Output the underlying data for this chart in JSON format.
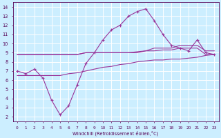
{
  "xlabel": "Windchill (Refroidissement éolien,°C)",
  "background_color": "#cceeff",
  "grid_color": "#ffffff",
  "line_color": "#993399",
  "spiky_x": [
    0,
    1,
    2,
    3,
    4,
    5,
    6,
    7,
    8,
    9,
    10,
    11,
    12,
    13,
    14,
    15,
    16,
    17,
    18,
    19,
    20,
    21,
    22,
    23
  ],
  "spiky_y": [
    7.0,
    6.7,
    7.2,
    6.2,
    3.8,
    2.2,
    3.2,
    5.5,
    7.8,
    9.0,
    10.4,
    11.5,
    12.0,
    13.0,
    13.5,
    13.8,
    12.5,
    11.0,
    9.8,
    9.5,
    9.2,
    10.4,
    9.0,
    8.8
  ],
  "upper_flat_x": [
    0,
    1,
    2,
    3,
    4,
    5,
    6,
    7,
    8,
    9,
    10,
    11,
    12,
    13,
    14,
    15,
    16,
    17,
    18,
    19,
    20,
    21,
    22,
    23
  ],
  "upper_flat_y": [
    8.8,
    8.8,
    8.8,
    8.8,
    8.8,
    8.8,
    8.8,
    8.8,
    9.0,
    9.0,
    9.0,
    9.0,
    9.0,
    9.0,
    9.0,
    9.2,
    9.2,
    9.3,
    9.3,
    9.5,
    9.5,
    9.5,
    8.8,
    8.8
  ],
  "upper_flat2_y": [
    8.8,
    8.8,
    8.8,
    8.8,
    8.8,
    8.8,
    8.8,
    8.8,
    9.0,
    9.0,
    9.0,
    9.0,
    9.0,
    9.0,
    9.1,
    9.2,
    9.5,
    9.5,
    9.5,
    9.8,
    9.8,
    9.8,
    9.2,
    9.2
  ],
  "lower_rising_x": [
    0,
    1,
    2,
    3,
    4,
    5,
    6,
    7,
    8,
    9,
    10,
    11,
    12,
    13,
    14,
    15,
    16,
    17,
    18,
    19,
    20,
    21,
    22,
    23
  ],
  "lower_rising_y": [
    6.5,
    6.5,
    6.5,
    6.5,
    6.5,
    6.5,
    6.7,
    6.8,
    7.0,
    7.2,
    7.4,
    7.5,
    7.7,
    7.8,
    8.0,
    8.1,
    8.2,
    8.2,
    8.3,
    8.3,
    8.4,
    8.5,
    8.7,
    8.8
  ],
  "ylim": [
    1.5,
    14.5
  ],
  "xlim": [
    -0.5,
    23.5
  ],
  "yticks": [
    2,
    3,
    4,
    5,
    6,
    7,
    8,
    9,
    10,
    11,
    12,
    13,
    14
  ],
  "xticks": [
    0,
    1,
    2,
    3,
    4,
    5,
    6,
    7,
    8,
    9,
    10,
    11,
    12,
    13,
    14,
    15,
    16,
    17,
    18,
    19,
    20,
    21,
    22,
    23
  ]
}
